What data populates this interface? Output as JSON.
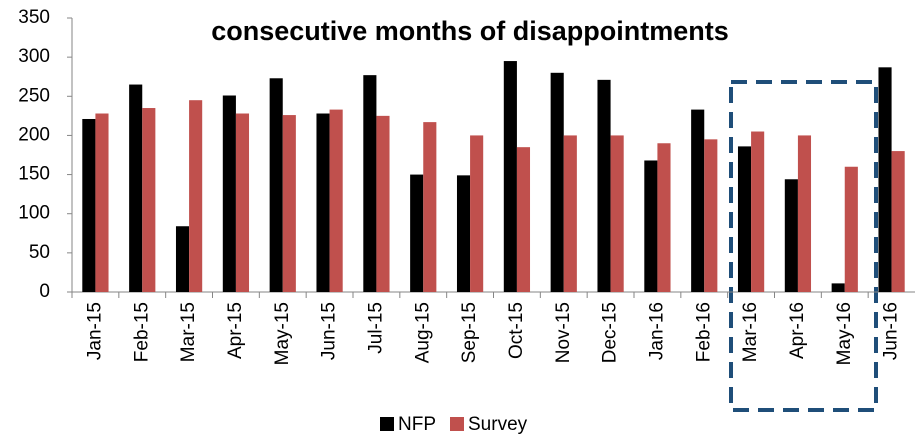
{
  "chart_data": {
    "type": "bar",
    "title": "consecutive months of disappointments",
    "categories": [
      "Jan-15",
      "Feb-15",
      "Mar-15",
      "Apr-15",
      "May-15",
      "Jun-15",
      "Jul-15",
      "Aug-15",
      "Sep-15",
      "Oct-15",
      "Nov-15",
      "Dec-15",
      "Jan-16",
      "Feb-16",
      "Mar-16",
      "Apr-16",
      "May-16",
      "Jun-16"
    ],
    "series": [
      {
        "name": "NFP",
        "color": "#000000",
        "values": [
          221,
          265,
          84,
          251,
          273,
          228,
          277,
          150,
          149,
          295,
          280,
          271,
          168,
          233,
          186,
          144,
          11,
          287
        ]
      },
      {
        "name": "Survey",
        "color": "#c0504d",
        "values": [
          228,
          235,
          245,
          228,
          226,
          233,
          225,
          217,
          200,
          185,
          200,
          200,
          190,
          195,
          205,
          200,
          160,
          180
        ]
      }
    ],
    "ylim": [
      0,
      350
    ],
    "yticks": [
      0,
      50,
      100,
      150,
      200,
      250,
      300,
      350
    ],
    "legend": "bottom"
  }
}
